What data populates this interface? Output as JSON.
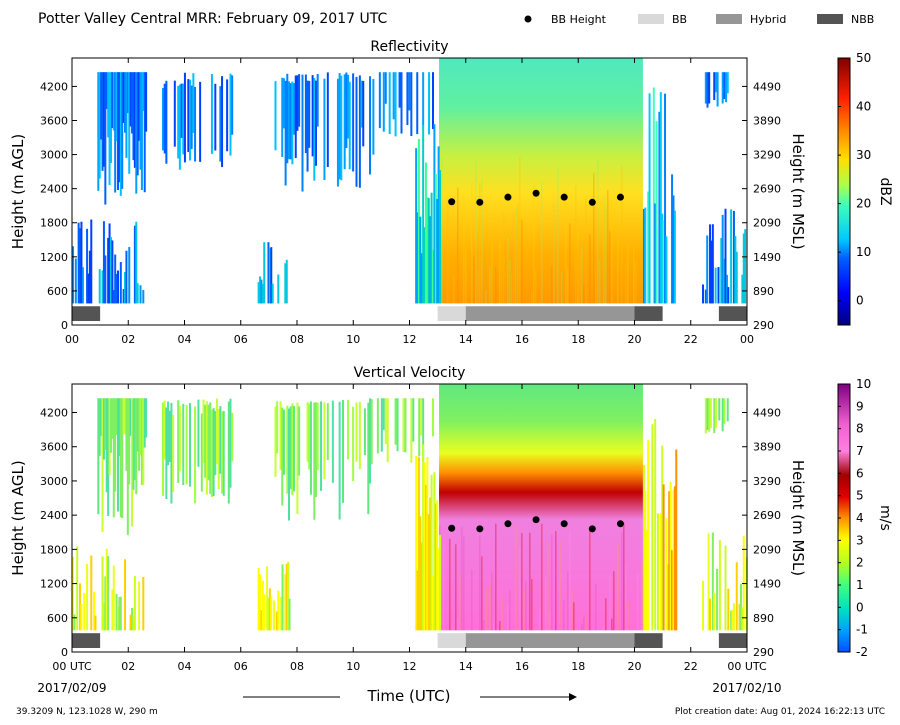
{
  "header": {
    "title": "Potter Valley Central MRR:  February 09, 2017 UTC",
    "legend": [
      {
        "label": "BB Height",
        "kind": "dot",
        "color": "#000000"
      },
      {
        "label": "BB",
        "kind": "bar",
        "color": "#d9d9d9"
      },
      {
        "label": "Hybrid",
        "kind": "bar",
        "color": "#969696"
      },
      {
        "label": "NBB",
        "kind": "bar",
        "color": "#545454"
      }
    ]
  },
  "footer": {
    "x_axis_label": "Time (UTC)",
    "start_date": "2017/02/09",
    "end_date": "2017/02/10",
    "location": "39.3209 N, 123.1028 W, 290 m",
    "creation": "Plot creation date: Aug 01, 2024 16:22:13 UTC"
  },
  "chart_data": [
    {
      "type": "heatmap",
      "title": "Reflectivity",
      "ylabel": "Height (m AGL)",
      "ylabel_right": "Height (m MSL)",
      "colorbar_label": "dBZ",
      "colorbar_ticks": [
        "0",
        "10",
        "20",
        "30",
        "40",
        "50"
      ],
      "colorbar_range": [
        -5,
        50
      ],
      "xlim": [
        0,
        24
      ],
      "ylim": [
        0,
        4700
      ],
      "x_ticks": [
        "00",
        "02",
        "04",
        "06",
        "08",
        "10",
        "12",
        "14",
        "16",
        "18",
        "20",
        "22",
        "00"
      ],
      "y_ticks": [
        "0",
        "600",
        "1200",
        "1800",
        "2400",
        "3000",
        "3600",
        "4200"
      ],
      "y_ticks_right": [
        "290",
        "890",
        "1490",
        "2090",
        "2690",
        "3290",
        "3890",
        "4490"
      ],
      "bb_height": {
        "x": [
          13.5,
          14.5,
          15.5,
          16.5,
          17.5,
          18.5,
          19.5
        ],
        "y": [
          2170,
          2160,
          2250,
          2320,
          2250,
          2160,
          2250
        ]
      },
      "bb_classification": [
        {
          "type": "NBB",
          "start": 0.0,
          "end": 1.0
        },
        {
          "type": "BB",
          "start": 13.0,
          "end": 14.0
        },
        {
          "type": "Hybrid",
          "start": 14.0,
          "end": 20.0
        },
        {
          "type": "NBB",
          "start": 20.0,
          "end": 21.0
        },
        {
          "type": "NBB",
          "start": 23.0,
          "end": 24.0
        }
      ]
    },
    {
      "type": "heatmap",
      "title": "Vertical Velocity",
      "ylabel": "Height (m AGL)",
      "ylabel_right": "Height (m MSL)",
      "colorbar_label": "m/s",
      "colorbar_ticks": [
        "-2",
        "-1",
        "0",
        "1",
        "2",
        "3",
        "4",
        "5",
        "6",
        "7",
        "8",
        "9",
        "10"
      ],
      "colorbar_range": [
        -2,
        10
      ],
      "xlim": [
        0,
        24
      ],
      "ylim": [
        0,
        4700
      ],
      "x_ticks": [
        "00 UTC",
        "02",
        "04",
        "06",
        "08",
        "10",
        "12",
        "14",
        "16",
        "18",
        "20",
        "22",
        "00 UTC"
      ],
      "y_ticks": [
        "0",
        "600",
        "1200",
        "1800",
        "2400",
        "3000",
        "3600",
        "4200"
      ],
      "y_ticks_right": [
        "290",
        "890",
        "1490",
        "2090",
        "2690",
        "3290",
        "3890",
        "4490"
      ],
      "bb_height": {
        "x": [
          13.5,
          14.5,
          15.5,
          16.5,
          17.5,
          18.5,
          19.5
        ],
        "y": [
          2170,
          2160,
          2250,
          2320,
          2250,
          2160,
          2250
        ]
      },
      "bb_classification": [
        {
          "type": "NBB",
          "start": 0.0,
          "end": 1.0
        },
        {
          "type": "BB",
          "start": 13.0,
          "end": 14.0
        },
        {
          "type": "Hybrid",
          "start": 14.0,
          "end": 20.0
        },
        {
          "type": "NBB",
          "start": 20.0,
          "end": 21.0
        },
        {
          "type": "NBB",
          "start": 23.0,
          "end": 24.0
        }
      ]
    }
  ]
}
